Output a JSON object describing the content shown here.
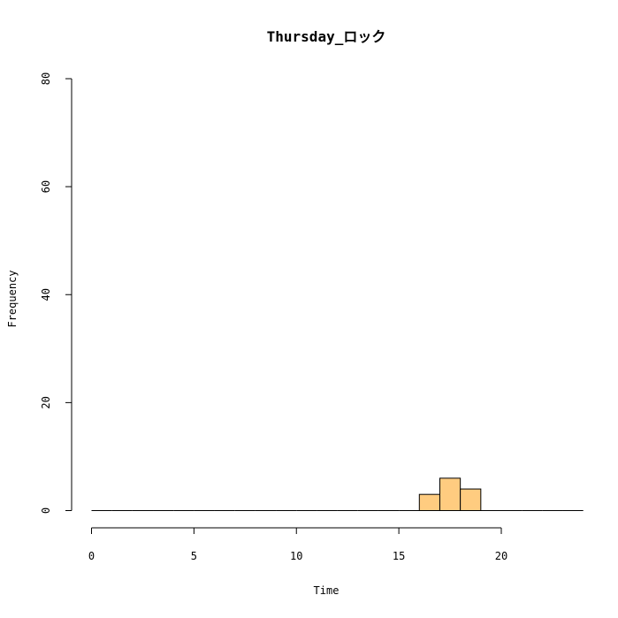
{
  "chart_data": {
    "type": "bar",
    "title": "Thursday_ロック",
    "xlabel": "Time",
    "ylabel": "Frequency",
    "xlim": [
      0,
      24
    ],
    "ylim": [
      0,
      80
    ],
    "xticks": [
      "0",
      "5",
      "10",
      "15",
      "20"
    ],
    "yticks": [
      "0",
      "20",
      "40",
      "60",
      "80"
    ],
    "bin_width": 1,
    "bins": [
      {
        "start": 0,
        "count": 0
      },
      {
        "start": 1,
        "count": 0
      },
      {
        "start": 2,
        "count": 0
      },
      {
        "start": 3,
        "count": 0
      },
      {
        "start": 4,
        "count": 0
      },
      {
        "start": 5,
        "count": 0
      },
      {
        "start": 6,
        "count": 0
      },
      {
        "start": 7,
        "count": 0
      },
      {
        "start": 8,
        "count": 0
      },
      {
        "start": 9,
        "count": 0
      },
      {
        "start": 10,
        "count": 0
      },
      {
        "start": 11,
        "count": 0
      },
      {
        "start": 12,
        "count": 0
      },
      {
        "start": 13,
        "count": 0
      },
      {
        "start": 14,
        "count": 0
      },
      {
        "start": 15,
        "count": 0
      },
      {
        "start": 16,
        "count": 3
      },
      {
        "start": 17,
        "count": 6
      },
      {
        "start": 18,
        "count": 4
      },
      {
        "start": 19,
        "count": 0
      },
      {
        "start": 20,
        "count": 0
      },
      {
        "start": 21,
        "count": 0
      },
      {
        "start": 22,
        "count": 0
      },
      {
        "start": 23,
        "count": 0
      }
    ],
    "bar_color": "#ffcc80",
    "grid": false
  }
}
